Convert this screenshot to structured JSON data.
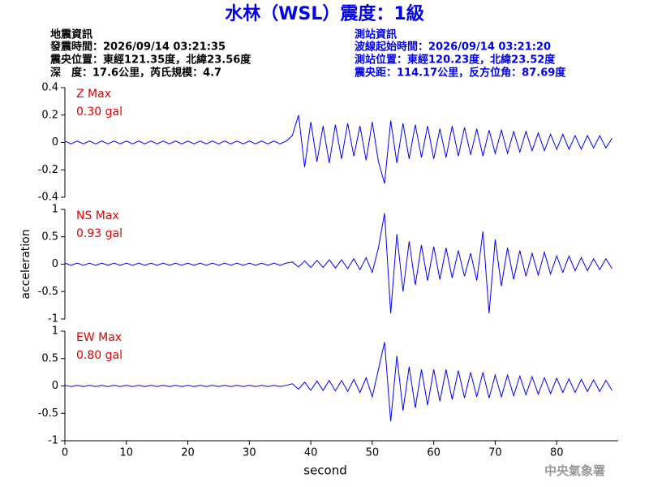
{
  "header": {
    "title": "水林（WSL）震度：1級",
    "left": [
      "地震資訊",
      "發震時間：2026/09/14 03:21:35",
      "震央位置：東經121.35度，北緯23.56度",
      "深　度：17.6公里，芮氏規模：4.7"
    ],
    "right": [
      "測站資訊",
      "波線起始時間：2026/09/14 03:21:20",
      "測站位置：東經120.23度，北緯23.52度",
      "震央距：114.17公里，反方位角：87.69度"
    ]
  },
  "watermark": "中央氣象署",
  "chart_data": [
    {
      "type": "line",
      "annotations": [
        "Z Max",
        "0.30 gal"
      ],
      "color": "#0000ff",
      "ylim": [
        -0.4,
        0.4
      ],
      "yticks": [
        -0.4,
        -0.2,
        0,
        0.2,
        0.4
      ],
      "x": [
        0,
        1,
        2,
        3,
        4,
        5,
        6,
        7,
        8,
        9,
        10,
        11,
        12,
        13,
        14,
        15,
        16,
        17,
        18,
        19,
        20,
        21,
        22,
        23,
        24,
        25,
        26,
        27,
        28,
        29,
        30,
        31,
        32,
        33,
        34,
        35,
        36,
        37,
        38,
        39,
        40,
        41,
        42,
        43,
        44,
        45,
        46,
        47,
        48,
        49,
        50,
        51,
        52,
        53,
        54,
        55,
        56,
        57,
        58,
        59,
        60,
        61,
        62,
        63,
        64,
        65,
        66,
        67,
        68,
        69,
        70,
        71,
        72,
        73,
        74,
        75,
        76,
        77,
        78,
        79,
        80,
        81,
        82,
        83,
        84,
        85,
        86,
        87,
        88,
        89
      ],
      "values": [
        0.01,
        -0.01,
        0.01,
        -0.01,
        0.01,
        -0.01,
        0.01,
        -0.01,
        0.01,
        -0.01,
        0.01,
        -0.01,
        0.01,
        -0.01,
        0.01,
        -0.01,
        0.01,
        -0.01,
        0.01,
        -0.01,
        0.01,
        -0.01,
        0.01,
        -0.01,
        0.01,
        -0.01,
        0.01,
        -0.01,
        0.01,
        -0.01,
        0.01,
        -0.01,
        0.01,
        -0.01,
        0.01,
        -0.01,
        0.01,
        0.05,
        0.2,
        -0.18,
        0.15,
        -0.14,
        0.12,
        -0.15,
        0.13,
        -0.12,
        0.14,
        -0.1,
        0.12,
        -0.13,
        0.15,
        -0.14,
        -0.3,
        0.16,
        -0.15,
        0.14,
        -0.12,
        0.13,
        -0.11,
        0.12,
        -0.12,
        0.1,
        -0.11,
        0.12,
        -0.1,
        0.11,
        -0.09,
        0.1,
        -0.1,
        0.09,
        -0.08,
        0.09,
        -0.08,
        0.08,
        -0.07,
        0.08,
        -0.06,
        0.07,
        -0.06,
        0.06,
        -0.05,
        0.06,
        -0.05,
        0.05,
        -0.05,
        0.05,
        -0.04,
        0.05,
        -0.04,
        0.03
      ]
    },
    {
      "type": "line",
      "annotations": [
        "NS Max",
        "0.93 gal"
      ],
      "ylabel": "acceleration",
      "color": "#0000ff",
      "ylim": [
        -1,
        1
      ],
      "yticks": [
        -1,
        -0.5,
        0,
        0.5,
        1
      ],
      "x": [
        0,
        1,
        2,
        3,
        4,
        5,
        6,
        7,
        8,
        9,
        10,
        11,
        12,
        13,
        14,
        15,
        16,
        17,
        18,
        19,
        20,
        21,
        22,
        23,
        24,
        25,
        26,
        27,
        28,
        29,
        30,
        31,
        32,
        33,
        34,
        35,
        36,
        37,
        38,
        39,
        40,
        41,
        42,
        43,
        44,
        45,
        46,
        47,
        48,
        49,
        50,
        51,
        52,
        53,
        54,
        55,
        56,
        57,
        58,
        59,
        60,
        61,
        62,
        63,
        64,
        65,
        66,
        67,
        68,
        69,
        70,
        71,
        72,
        73,
        74,
        75,
        76,
        77,
        78,
        79,
        80,
        81,
        82,
        83,
        84,
        85,
        86,
        87,
        88,
        89
      ],
      "values": [
        0.02,
        -0.02,
        0.02,
        -0.02,
        0.02,
        -0.02,
        0.02,
        -0.02,
        0.02,
        -0.02,
        0.02,
        -0.02,
        0.02,
        -0.02,
        0.02,
        -0.02,
        0.02,
        -0.02,
        0.02,
        -0.02,
        0.02,
        -0.02,
        0.02,
        -0.02,
        0.02,
        -0.02,
        0.02,
        -0.02,
        0.02,
        -0.02,
        0.02,
        -0.02,
        0.02,
        -0.02,
        0.02,
        -0.02,
        0.02,
        0.04,
        -0.05,
        0.06,
        -0.06,
        0.07,
        -0.06,
        0.08,
        -0.07,
        0.08,
        -0.08,
        0.1,
        -0.1,
        0.12,
        -0.15,
        0.3,
        0.93,
        -0.9,
        0.55,
        -0.5,
        0.42,
        -0.38,
        0.35,
        -0.3,
        0.32,
        -0.28,
        0.3,
        -0.25,
        0.25,
        -0.22,
        0.2,
        -0.3,
        0.6,
        -0.9,
        0.45,
        -0.4,
        0.3,
        -0.28,
        0.25,
        -0.22,
        0.2,
        -0.2,
        0.22,
        -0.18,
        0.15,
        -0.15,
        0.15,
        -0.12,
        0.12,
        -0.12,
        0.1,
        -0.1,
        0.1,
        -0.08
      ]
    },
    {
      "type": "line",
      "annotations": [
        "EW Max",
        "0.80 gal"
      ],
      "xlabel": "second",
      "color": "#0000ff",
      "ylim": [
        -1,
        1
      ],
      "yticks": [
        -1,
        -0.5,
        0,
        0.5,
        1
      ],
      "xlim": [
        0,
        90
      ],
      "xticks": [
        0,
        10,
        20,
        30,
        40,
        50,
        60,
        70,
        80
      ],
      "x": [
        0,
        1,
        2,
        3,
        4,
        5,
        6,
        7,
        8,
        9,
        10,
        11,
        12,
        13,
        14,
        15,
        16,
        17,
        18,
        19,
        20,
        21,
        22,
        23,
        24,
        25,
        26,
        27,
        28,
        29,
        30,
        31,
        32,
        33,
        34,
        35,
        36,
        37,
        38,
        39,
        40,
        41,
        42,
        43,
        44,
        45,
        46,
        47,
        48,
        49,
        50,
        51,
        52,
        53,
        54,
        55,
        56,
        57,
        58,
        59,
        60,
        61,
        62,
        63,
        64,
        65,
        66,
        67,
        68,
        69,
        70,
        71,
        72,
        73,
        74,
        75,
        76,
        77,
        78,
        79,
        80,
        81,
        82,
        83,
        84,
        85,
        86,
        87,
        88,
        89
      ],
      "values": [
        0.01,
        -0.01,
        0.01,
        -0.01,
        0.01,
        -0.01,
        0.01,
        -0.01,
        0.01,
        -0.01,
        0.01,
        -0.01,
        0.01,
        -0.01,
        0.01,
        -0.01,
        0.01,
        -0.01,
        0.01,
        -0.01,
        0.01,
        -0.01,
        0.01,
        -0.01,
        0.01,
        -0.01,
        0.01,
        -0.01,
        0.01,
        -0.01,
        0.01,
        -0.01,
        0.01,
        -0.01,
        0.01,
        -0.01,
        0.01,
        0.04,
        -0.06,
        0.07,
        -0.08,
        0.09,
        -0.08,
        0.1,
        -0.09,
        0.1,
        -0.1,
        0.12,
        -0.12,
        0.15,
        -0.2,
        0.3,
        0.8,
        -0.65,
        0.55,
        -0.45,
        0.35,
        -0.4,
        0.3,
        -0.35,
        0.3,
        -0.28,
        0.3,
        -0.25,
        0.28,
        -0.22,
        0.25,
        -0.2,
        0.25,
        -0.22,
        0.2,
        -0.2,
        0.2,
        -0.18,
        0.18,
        -0.16,
        0.17,
        -0.15,
        0.15,
        -0.14,
        0.14,
        -0.12,
        0.13,
        -0.12,
        0.12,
        -0.1,
        0.11,
        -0.1,
        0.1,
        -0.08
      ]
    }
  ]
}
